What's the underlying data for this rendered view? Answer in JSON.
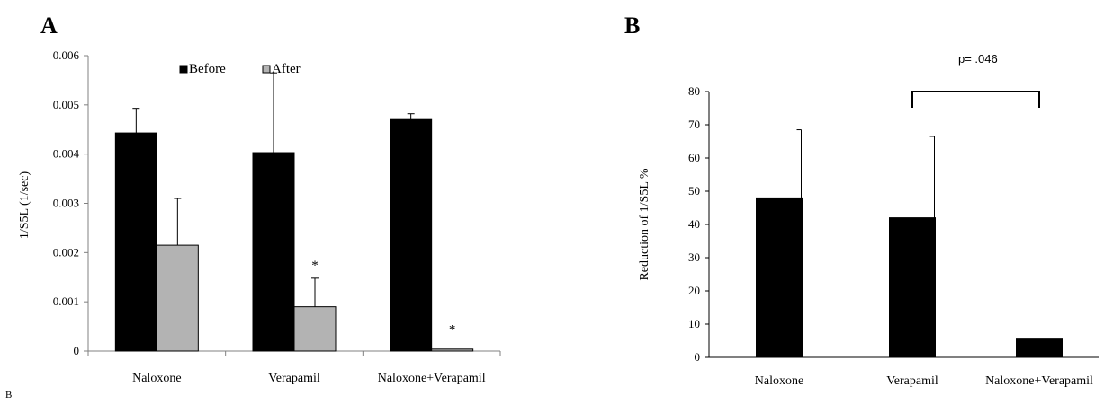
{
  "panels": {
    "a_letter": "A",
    "b_letter": "B",
    "stray_letter": "B"
  },
  "chart_data": [
    {
      "type": "bar",
      "panel": "A",
      "title": "",
      "xlabel": "",
      "ylabel": "1/S5L (1/sec)",
      "ylim": [
        0,
        0.006
      ],
      "yticks": [
        "0",
        "0.001",
        "0.002",
        "0.003",
        "0.004",
        "0.005",
        "0.006"
      ],
      "grid": false,
      "legend_position": "top-center",
      "categories": [
        "Naloxone",
        "Verapamil",
        "Naloxone+Verapamil"
      ],
      "series": [
        {
          "name": "Before",
          "color": "#000000",
          "values": [
            0.00443,
            0.00403,
            0.00472
          ],
          "error_plus": [
            0.0005,
            0.00162,
            0.0001
          ]
        },
        {
          "name": "After",
          "color": "#b3b3b3",
          "values": [
            0.00215,
            0.0009,
            4e-05
          ],
          "error_plus": [
            0.00095,
            0.00058,
            0
          ]
        }
      ],
      "annotations": [
        {
          "text": "*",
          "category": "Verapamil",
          "series": "After",
          "y": 0.00175
        },
        {
          "text": "*",
          "category": "Naloxone+Verapamil",
          "series": "After",
          "y": 0.00045
        }
      ]
    },
    {
      "type": "bar",
      "panel": "B",
      "title": "",
      "xlabel": "",
      "ylabel": "Reduction of 1/S5L %",
      "ylim": [
        0,
        80
      ],
      "yticks": [
        "0",
        "10",
        "20",
        "30",
        "40",
        "50",
        "60",
        "70",
        "80"
      ],
      "grid": false,
      "categories": [
        "Naloxone",
        "Verapamil",
        "Naloxone+Verapamil"
      ],
      "series": [
        {
          "color": "#000000",
          "values": [
            48,
            42,
            5.5
          ],
          "error_plus": [
            20.5,
            24.5,
            0
          ]
        }
      ],
      "annotations": [
        {
          "text": "p= .046",
          "bracket": [
            "Verapamil",
            "Naloxone+Verapamil"
          ],
          "y": 80
        }
      ]
    }
  ]
}
